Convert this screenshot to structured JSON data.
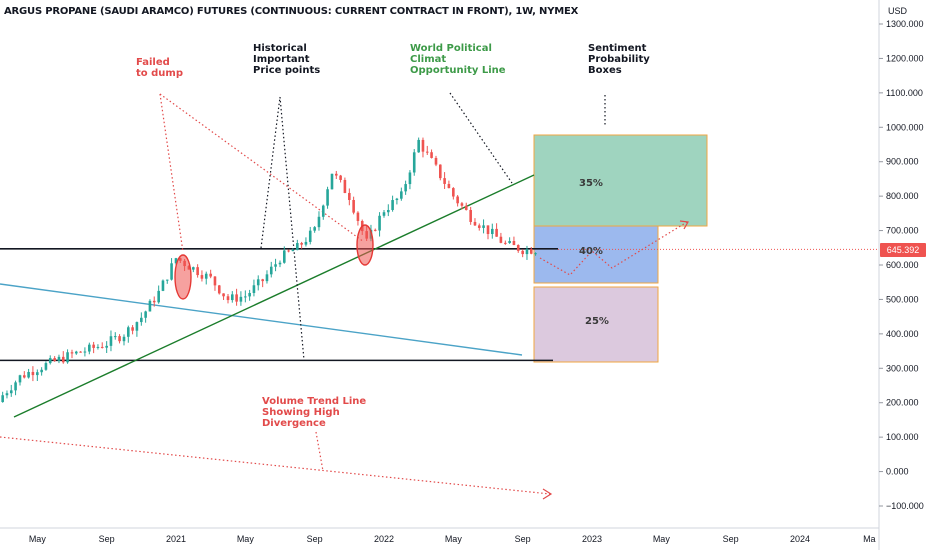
{
  "header": {
    "title": "ARGUS PROPANE (SAUDI ARAMCO) FUTURES (CONTINUOUS: CURRENT CONTRACT IN FRONT), 1W, NYMEX",
    "currency": "USD",
    "last_price": "645.392"
  },
  "colors": {
    "bull": "#26a69a",
    "bear": "#ef5350",
    "trend_green": "#1b7d2b",
    "trend_blue": "#4ba3c7",
    "annotation_red": "#e24a4a",
    "annotation_green": "#3d9a48",
    "box_green": "#9fd4bf",
    "box_blue": "#9cb9ee",
    "box_purple": "#dcc9de",
    "box_border": "#f0a640"
  },
  "annotations": {
    "failed_to_dump": "Failed\nto dump",
    "historical": "Historical\nImportant\nPrice points",
    "world_political": "World Political\nClimat\nOpportunity Line",
    "sentiment": "Sentiment\nProbability\nBoxes",
    "volume_trend": "Volume Trend Line\nShowing High\nDivergence"
  },
  "probability_boxes": [
    {
      "label": "35%",
      "color": "#9fd4bf"
    },
    {
      "label": "40%",
      "color": "#9cb9ee"
    },
    {
      "label": "25%",
      "color": "#dcc9de"
    }
  ],
  "chart_data": {
    "type": "candlestick",
    "title": "ARGUS PROPANE (SAUDI ARAMCO) FUTURES (CONTINUOUS: CURRENT CONTRACT IN FRONT), 1W, NYMEX",
    "y_axis": {
      "unit": "USD",
      "ticks": [
        "1300.000",
        "1200.000",
        "1100.000",
        "1000.000",
        "900.000",
        "800.000",
        "700.000",
        "600.000",
        "500.000",
        "400.000",
        "300.000",
        "200.000",
        "100.000",
        "0.000",
        "−100.000"
      ],
      "tick_values": [
        1300,
        1200,
        1100,
        1000,
        900,
        800,
        700,
        600,
        500,
        400,
        300,
        200,
        100,
        0,
        -100
      ],
      "range": [
        -135,
        1345
      ]
    },
    "x_axis": {
      "ticks": [
        "May",
        "Sep",
        "2021",
        "May",
        "Sep",
        "2022",
        "May",
        "Sep",
        "2023",
        "May",
        "Sep",
        "2024",
        "Ma"
      ],
      "tick_dates": [
        "2020-05",
        "2020-09",
        "2021-01",
        "2021-05",
        "2021-09",
        "2022-01",
        "2022-05",
        "2022-09",
        "2023-01",
        "2023-05",
        "2023-09",
        "2024-01",
        "2024-05"
      ]
    },
    "last_price": 645.392,
    "horizontal_levels": [
      647,
      323
    ],
    "series": [
      {
        "date": "2020-03",
        "close": 222
      },
      {
        "date": "2020-04",
        "close": 275
      },
      {
        "date": "2020-05",
        "close": 300
      },
      {
        "date": "2020-06",
        "close": 320
      },
      {
        "date": "2020-07",
        "close": 340
      },
      {
        "date": "2020-08",
        "close": 355
      },
      {
        "date": "2020-09",
        "close": 372
      },
      {
        "date": "2020-10",
        "close": 400
      },
      {
        "date": "2020-11",
        "close": 448
      },
      {
        "date": "2020-12",
        "close": 520
      },
      {
        "date": "2021-01",
        "close": 620
      },
      {
        "date": "2021-02",
        "close": 590
      },
      {
        "date": "2021-03",
        "close": 560
      },
      {
        "date": "2021-04",
        "close": 500
      },
      {
        "date": "2021-05",
        "close": 510
      },
      {
        "date": "2021-06",
        "close": 555
      },
      {
        "date": "2021-07",
        "close": 620
      },
      {
        "date": "2021-08",
        "close": 650
      },
      {
        "date": "2021-09",
        "close": 700
      },
      {
        "date": "2021-10",
        "close": 870
      },
      {
        "date": "2021-11",
        "close": 800
      },
      {
        "date": "2021-12",
        "close": 665
      },
      {
        "date": "2022-01",
        "close": 760
      },
      {
        "date": "2022-02",
        "close": 800
      },
      {
        "date": "2022-03",
        "close": 960
      },
      {
        "date": "2022-04",
        "close": 880
      },
      {
        "date": "2022-05",
        "close": 800
      },
      {
        "date": "2022-06",
        "close": 740
      },
      {
        "date": "2022-07",
        "close": 700
      },
      {
        "date": "2022-08",
        "close": 660
      },
      {
        "date": "2022-09",
        "close": 645
      }
    ]
  }
}
